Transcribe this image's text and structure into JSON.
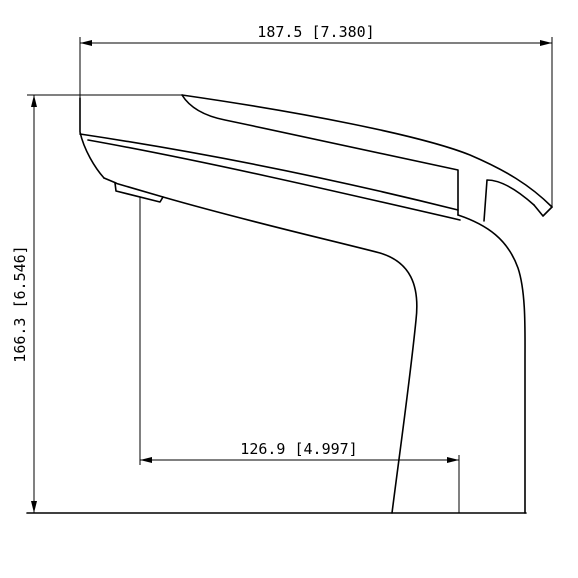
{
  "drawing": {
    "dimensions": {
      "overall_length": {
        "label": "187.5 [7.380]",
        "value_mm": 187.5,
        "value_in": 7.38
      },
      "overall_height": {
        "label": "166.3 [6.546]",
        "value_mm": 166.3,
        "value_in": 6.546
      },
      "reach": {
        "label": "126.9 [4.997]",
        "value_mm": 126.9,
        "value_in": 4.997
      }
    },
    "colors": {
      "line": "#000000",
      "background": "#ffffff"
    }
  }
}
